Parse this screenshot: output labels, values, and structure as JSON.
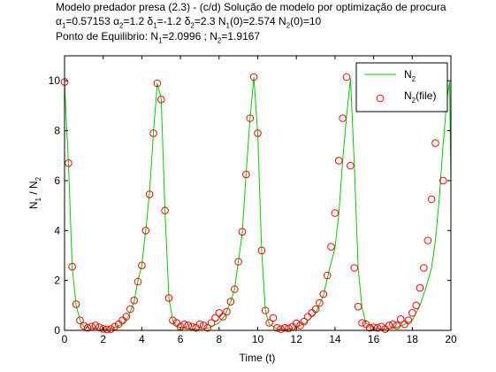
{
  "chart_data": {
    "type": "line",
    "title": {
      "line1": "Modelo predador presa (2.3) - (c/d) Solução de modelo por optimização de procura",
      "line2": {
        "alpha1_sym": "α",
        "alpha1_sub": "1",
        "alpha1_val": "=0.57153 ",
        "alpha2_sym": "α",
        "alpha2_sub": "2",
        "alpha2_val": "=1.2 ",
        "delta1_sym": "δ",
        "delta1_sub": "1",
        "delta1_val": "=-1.2 ",
        "delta2_sym": "δ",
        "delta2_sub": "2",
        "delta2_val": "=2.3 ",
        "n1_sym": "N",
        "n1_sub": "1",
        "n1_val": "(0)=2.574 ",
        "n2_sym": "N",
        "n2_sub": "2",
        "n2_val": "(0)=10"
      },
      "line3": {
        "prefix": "Ponto de Equilibrio: ",
        "n1_sym": "N",
        "n1_sub": "1",
        "n1_val": "=2.0996 ; ",
        "n2_sym": "N",
        "n2_sub": "2",
        "n2_val": "=1.9167"
      }
    },
    "xlabel": "Time (t)",
    "ylabel": {
      "p1": "N",
      "s1": "1",
      "p2": " / N",
      "s2": "2"
    },
    "xlim": [
      0,
      20
    ],
    "ylim": [
      0,
      11
    ],
    "xticks": [
      0,
      2,
      4,
      6,
      8,
      10,
      12,
      14,
      16,
      18,
      20
    ],
    "yticks": [
      0,
      2,
      4,
      6,
      8,
      10
    ],
    "grid": false,
    "legend_position": "top-right",
    "series": [
      {
        "name": "N2",
        "legend": {
          "main": "N",
          "sub": "2",
          "rest": ""
        },
        "style": "line",
        "color": "#00cc00",
        "points": [
          [
            0,
            9.9
          ],
          [
            0.2,
            6.7
          ],
          [
            0.4,
            2.5
          ],
          [
            0.6,
            1.0
          ],
          [
            0.8,
            0.4
          ],
          [
            1.0,
            0.15
          ],
          [
            1.5,
            0.08
          ],
          [
            2.0,
            0.05
          ],
          [
            2.5,
            0.08
          ],
          [
            3.0,
            0.25
          ],
          [
            3.3,
            0.55
          ],
          [
            3.6,
            1.15
          ],
          [
            3.8,
            2.0
          ],
          [
            4.0,
            2.6
          ],
          [
            4.2,
            4.0
          ],
          [
            4.4,
            5.5
          ],
          [
            4.6,
            7.9
          ],
          [
            4.8,
            9.9
          ],
          [
            5.0,
            9.3
          ],
          [
            5.2,
            4.8
          ],
          [
            5.4,
            1.3
          ],
          [
            5.6,
            0.4
          ],
          [
            5.8,
            0.15
          ],
          [
            6.3,
            0.06
          ],
          [
            7.0,
            0.05
          ],
          [
            7.5,
            0.1
          ],
          [
            8.0,
            0.3
          ],
          [
            8.3,
            0.6
          ],
          [
            8.6,
            1.15
          ],
          [
            8.8,
            1.65
          ],
          [
            9.0,
            2.75
          ],
          [
            9.2,
            3.9
          ],
          [
            9.4,
            6.3
          ],
          [
            9.6,
            8.5
          ],
          [
            9.8,
            10.15
          ],
          [
            10.0,
            7.9
          ],
          [
            10.2,
            3.2
          ],
          [
            10.4,
            0.8
          ],
          [
            10.6,
            0.25
          ],
          [
            11.0,
            0.06
          ],
          [
            11.5,
            0.05
          ],
          [
            12.0,
            0.12
          ],
          [
            12.5,
            0.3
          ],
          [
            13.0,
            0.7
          ],
          [
            13.4,
            1.4
          ],
          [
            13.7,
            2.4
          ],
          [
            14.0,
            3.3
          ],
          [
            14.2,
            4.7
          ],
          [
            14.4,
            6.8
          ],
          [
            14.6,
            8.6
          ],
          [
            14.8,
            10.1
          ],
          [
            15.0,
            6.6
          ],
          [
            15.2,
            2.5
          ],
          [
            15.4,
            0.9
          ],
          [
            15.6,
            0.3
          ],
          [
            16.0,
            0.1
          ],
          [
            16.5,
            0.05
          ],
          [
            17.0,
            0.08
          ],
          [
            17.5,
            0.2
          ],
          [
            18.0,
            0.4
          ],
          [
            18.4,
            1.0
          ],
          [
            18.7,
            1.7
          ],
          [
            19.0,
            2.5
          ],
          [
            19.2,
            3.6
          ],
          [
            19.4,
            5.3
          ],
          [
            19.6,
            7.5
          ],
          [
            19.8,
            9.3
          ],
          [
            19.93,
            9.95
          ],
          [
            20.0,
            6.0
          ],
          [
            20.0,
            5.2
          ]
        ]
      },
      {
        "name": "N2(file)",
        "legend": {
          "main": "N",
          "sub": "2",
          "rest": "(file)"
        },
        "style": "markers",
        "color": "#ff0000",
        "points": [
          [
            0,
            9.95
          ],
          [
            0.2,
            6.7
          ],
          [
            0.4,
            2.55
          ],
          [
            0.6,
            1.05
          ],
          [
            0.8,
            0.4
          ],
          [
            1.0,
            0.18
          ],
          [
            1.2,
            0.1
          ],
          [
            1.4,
            0.15
          ],
          [
            1.6,
            0.2
          ],
          [
            1.8,
            0.12
          ],
          [
            2.0,
            0.06
          ],
          [
            2.2,
            0.04
          ],
          [
            2.4,
            0.05
          ],
          [
            2.6,
            0.15
          ],
          [
            2.8,
            0.25
          ],
          [
            3.0,
            0.4
          ],
          [
            3.2,
            0.55
          ],
          [
            3.4,
            0.85
          ],
          [
            3.6,
            1.2
          ],
          [
            3.8,
            1.95
          ],
          [
            4.0,
            2.6
          ],
          [
            4.2,
            4.0
          ],
          [
            4.4,
            5.45
          ],
          [
            4.6,
            7.9
          ],
          [
            4.8,
            9.9
          ],
          [
            5.0,
            9.25
          ],
          [
            5.2,
            4.8
          ],
          [
            5.4,
            1.3
          ],
          [
            5.6,
            0.4
          ],
          [
            5.8,
            0.3
          ],
          [
            6.0,
            0.15
          ],
          [
            6.2,
            0.25
          ],
          [
            6.4,
            0.2
          ],
          [
            6.6,
            0.15
          ],
          [
            6.8,
            0.1
          ],
          [
            7.0,
            0.25
          ],
          [
            7.2,
            0.2
          ],
          [
            7.4,
            0.1
          ],
          [
            7.6,
            0.3
          ],
          [
            7.8,
            0.5
          ],
          [
            8.0,
            0.7
          ],
          [
            8.2,
            0.55
          ],
          [
            8.4,
            0.75
          ],
          [
            8.6,
            1.15
          ],
          [
            8.8,
            1.65
          ],
          [
            9.0,
            2.75
          ],
          [
            9.2,
            3.95
          ],
          [
            9.4,
            6.25
          ],
          [
            9.6,
            8.5
          ],
          [
            9.8,
            10.15
          ],
          [
            10.0,
            7.9
          ],
          [
            10.2,
            3.2
          ],
          [
            10.4,
            0.8
          ],
          [
            10.6,
            0.3
          ],
          [
            10.8,
            0.5
          ],
          [
            11.0,
            0.1
          ],
          [
            11.2,
            0.05
          ],
          [
            11.4,
            0.1
          ],
          [
            11.6,
            0.08
          ],
          [
            11.8,
            0.15
          ],
          [
            12.0,
            0.28
          ],
          [
            12.2,
            0.2
          ],
          [
            12.4,
            0.35
          ],
          [
            12.6,
            0.55
          ],
          [
            12.8,
            0.7
          ],
          [
            13.0,
            0.85
          ],
          [
            13.2,
            1.1
          ],
          [
            13.4,
            1.45
          ],
          [
            13.6,
            2.2
          ],
          [
            13.8,
            3.35
          ],
          [
            14.0,
            4.7
          ],
          [
            14.2,
            6.8
          ],
          [
            14.4,
            8.5
          ],
          [
            14.6,
            10.15
          ],
          [
            14.8,
            6.6
          ],
          [
            15.0,
            2.5
          ],
          [
            15.2,
            0.95
          ],
          [
            15.4,
            0.3
          ],
          [
            15.6,
            0.25
          ],
          [
            15.8,
            0.1
          ],
          [
            16.0,
            0.12
          ],
          [
            16.2,
            0.1
          ],
          [
            16.4,
            0.15
          ],
          [
            16.6,
            0.05
          ],
          [
            16.8,
            0.2
          ],
          [
            17.0,
            0.25
          ],
          [
            17.2,
            0.2
          ],
          [
            17.4,
            0.45
          ],
          [
            17.6,
            0.25
          ],
          [
            17.8,
            0.4
          ],
          [
            18.0,
            0.7
          ],
          [
            18.2,
            1.0
          ],
          [
            18.4,
            1.7
          ],
          [
            18.6,
            2.5
          ],
          [
            18.8,
            3.6
          ],
          [
            19.0,
            5.25
          ],
          [
            19.2,
            7.5
          ],
          [
            19.4,
            9.85
          ],
          [
            19.6,
            6.0
          ]
        ]
      }
    ]
  }
}
